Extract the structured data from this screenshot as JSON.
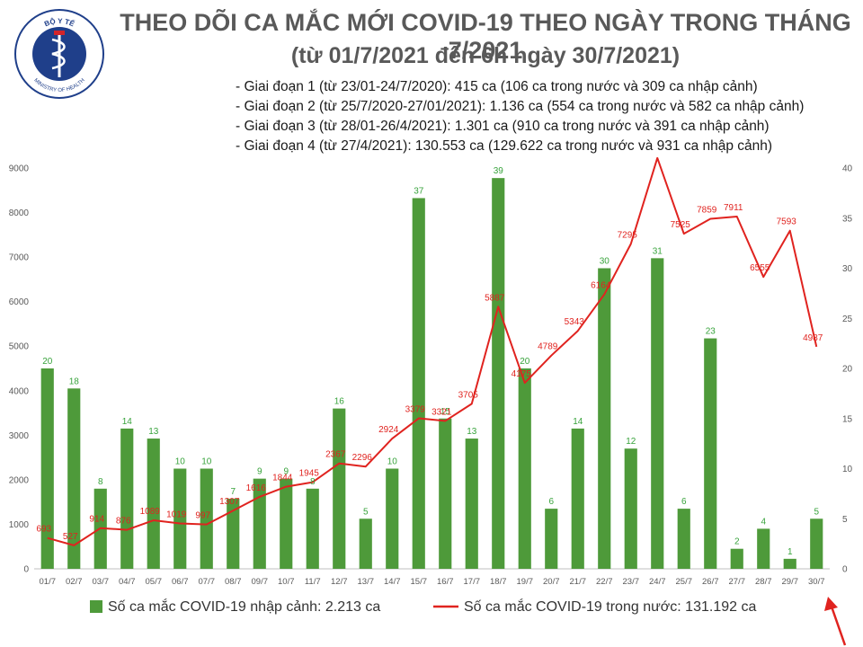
{
  "header": {
    "title": "THEO DÕI CA MẮC MỚI COVID-19 THEO NGÀY TRONG THÁNG 7/2021",
    "subtitle": "(từ 01/7/2021 đến 6h ngày 30/7/2021)",
    "logo_top_text": "BỘ Y TẾ",
    "logo_bottom_text": "MINISTRY OF HEALTH",
    "phases": [
      "- Giai đoạn 1 (từ 23/01-24/7/2020): 415 ca (106 ca trong nước và 309 ca nhập cảnh)",
      "- Giai đoạn 2 (từ 25/7/2020-27/01/2021): 1.136 ca (554 ca trong nước và 582 ca nhập cảnh)",
      "- Giai đoạn 3 (từ 28/01-26/4/2021): 1.301 ca (910 ca trong nước và 391 ca nhập cảnh)",
      "- Giai đoạn 4 (từ 27/4/2021): 130.553 ca (129.622 ca trong nước và 931 ca nhập cảnh)"
    ]
  },
  "chart_data": {
    "type": "bar",
    "categories": [
      "01/7",
      "02/7",
      "03/7",
      "04/7",
      "05/7",
      "06/7",
      "07/7",
      "08/7",
      "09/7",
      "10/7",
      "11/7",
      "12/7",
      "13/7",
      "14/7",
      "15/7",
      "16/7",
      "17/7",
      "18/7",
      "19/7",
      "20/7",
      "21/7",
      "22/7",
      "23/7",
      "24/7",
      "25/7",
      "26/7",
      "27/7",
      "28/7",
      "29/7",
      "30/7"
    ],
    "series": [
      {
        "name": "Số ca mắc COVID-19 nhập cảnh: 2.213 ca",
        "kind": "bar",
        "axis": "right",
        "color": "#4e9a3a",
        "values": [
          20,
          18,
          8,
          14,
          13,
          10,
          10,
          7,
          9,
          9,
          8,
          16,
          5,
          10,
          37,
          15,
          13,
          39,
          20,
          6,
          14,
          30,
          12,
          31,
          6,
          23,
          2,
          4,
          1,
          5
        ]
      },
      {
        "name": "Số ca mắc COVID-19 trong nước: 131.192 ca",
        "kind": "line",
        "axis": "left",
        "color": "#e0231f",
        "values": [
          693,
          527,
          914,
          876,
          1089,
          1019,
          997,
          1307,
          1616,
          1844,
          1945,
          2367,
          2296,
          2924,
          3379,
          3321,
          3705,
          5887,
          4175,
          4789,
          5343,
          6164,
          7295,
          9225,
          7525,
          7859,
          7911,
          6555,
          7593,
          4987
        ]
      }
    ],
    "yleft": {
      "ticks": [
        0,
        1000,
        2000,
        3000,
        4000,
        5000,
        6000,
        7000,
        8000,
        9000
      ],
      "ylim": [
        0,
        9000
      ]
    },
    "yright": {
      "ticks": [
        0,
        5,
        10,
        15,
        20,
        25,
        30,
        35,
        40
      ],
      "ylim": [
        0,
        40
      ]
    },
    "legend_placement": "bottom",
    "grid": false
  }
}
